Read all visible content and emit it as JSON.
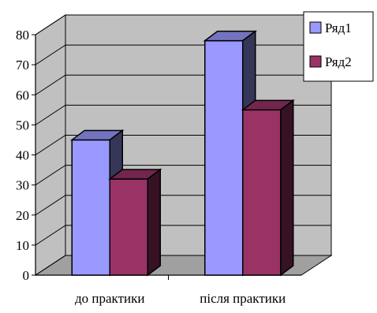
{
  "chart_data": {
    "type": "bar",
    "style": "3d-clustered-column",
    "categories": [
      "до практики",
      "після практики"
    ],
    "series": [
      {
        "name": "Ряд1",
        "values": [
          45,
          78
        ],
        "color": "#9999FF"
      },
      {
        "name": "Ряд2",
        "values": [
          32,
          55
        ],
        "color": "#993366"
      }
    ],
    "ylim": [
      0,
      80
    ],
    "yticks": [
      0,
      10,
      20,
      30,
      40,
      50,
      60,
      70,
      80
    ],
    "grid": true,
    "legend_position": "right",
    "colors": {
      "wall": "#C0C0C0",
      "floor": "#A0A0A0",
      "grid": "#000000"
    }
  }
}
